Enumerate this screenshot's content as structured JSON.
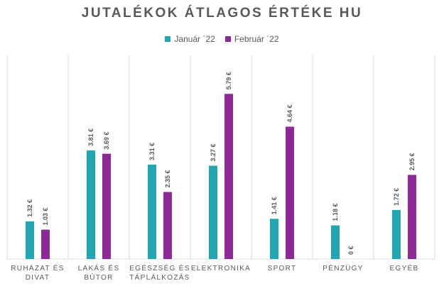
{
  "chart_data": {
    "type": "bar",
    "title": "JUTALÉKOK ÁTLAGOS ÉRTÉKE HU",
    "categories": [
      [
        "RUHÁZAT ÉS",
        "DIVAT"
      ],
      [
        "LAKÁS ÉS",
        "BÚTOR"
      ],
      [
        "EGÉSZSÉG ÉS",
        "TÁPLÁLKOZÁS"
      ],
      [
        "ELEKTRONIKA"
      ],
      [
        "SPORT"
      ],
      [
        "PÉNZÜGY"
      ],
      [
        "EGYÉB"
      ]
    ],
    "series": [
      {
        "name": "Január ´22",
        "color": "#21A6B2",
        "values": [
          1.32,
          3.81,
          3.31,
          3.27,
          1.41,
          1.18,
          1.72
        ],
        "labels": [
          "1.32 €",
          "3.81 €",
          "3.31 €",
          "3.27 €",
          "1.41 €",
          "1.18 €",
          "1.72 €"
        ]
      },
      {
        "name": "Február  ´22",
        "color": "#8E2A98",
        "values": [
          1.03,
          3.69,
          2.35,
          5.79,
          4.64,
          0,
          2.95
        ],
        "labels": [
          "1.03 €",
          "3.69 €",
          "2.35 €",
          "5.79 €",
          "4.64 €",
          "0 €",
          "2.95 €"
        ]
      }
    ],
    "ylim": [
      0,
      6.9
    ],
    "grid": "vertical-separators",
    "legend": "top-center"
  }
}
